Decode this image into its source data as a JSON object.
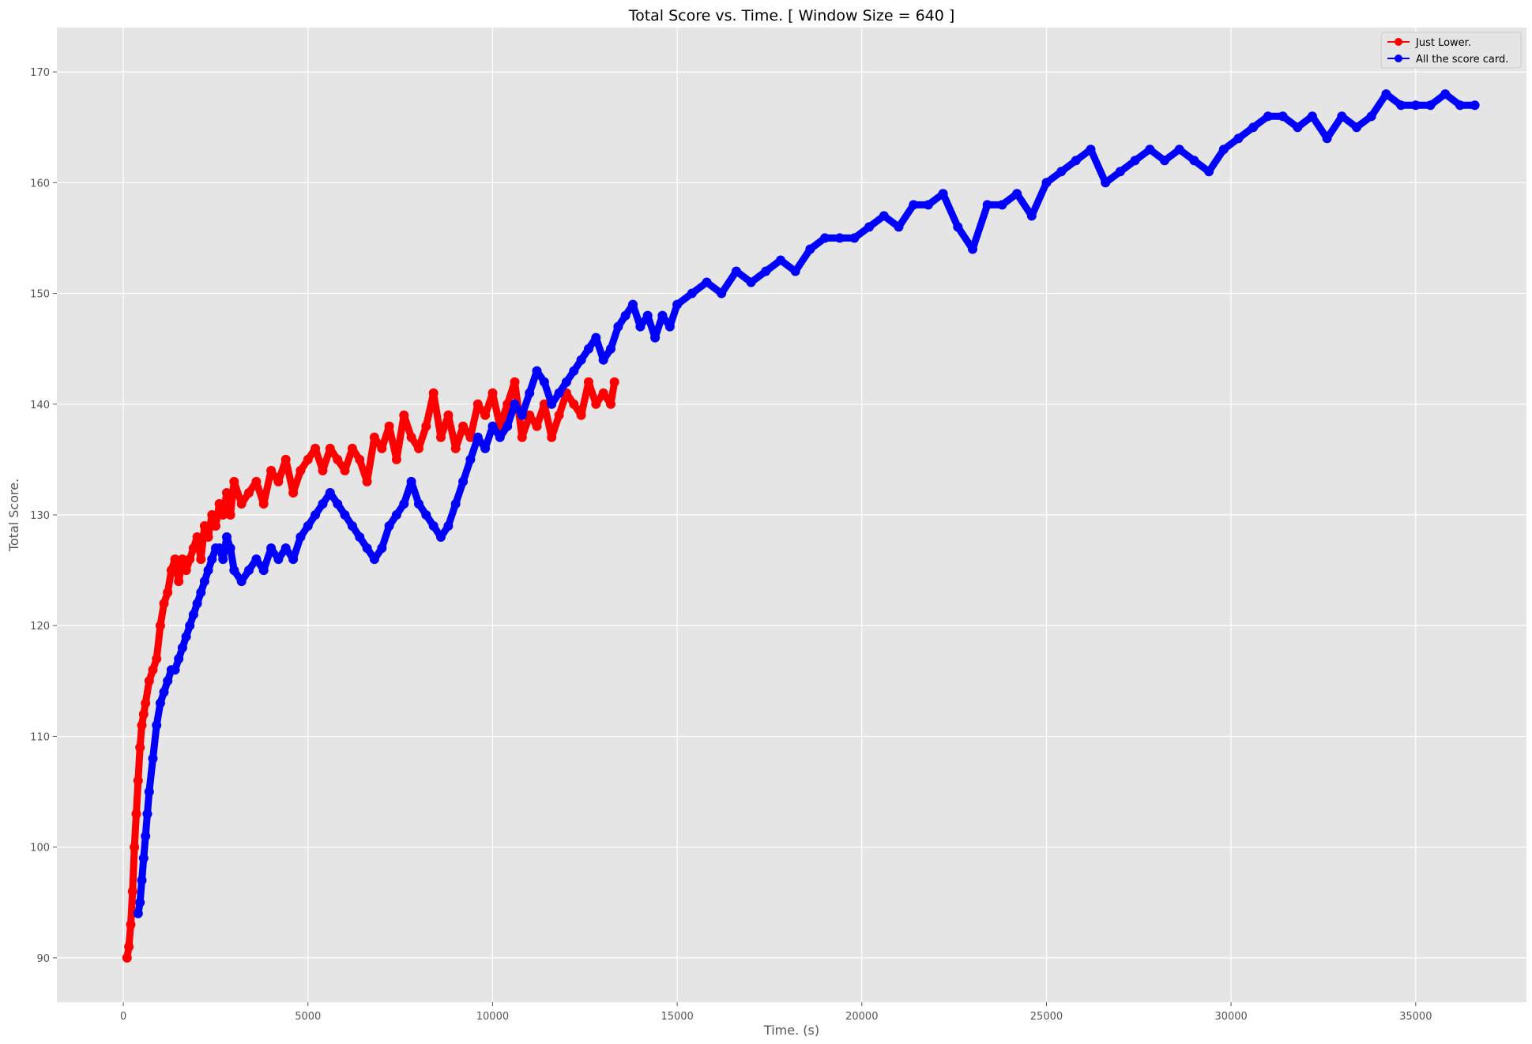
{
  "chart_data": {
    "type": "line",
    "title": "Total Score vs. Time. [ Window Size = 640 ]",
    "xlabel": "Time. (s)",
    "ylabel": "Total Score.",
    "xlim": [
      -1800,
      38000
    ],
    "ylim": [
      86,
      174
    ],
    "xticks": [
      0,
      5000,
      10000,
      15000,
      20000,
      25000,
      30000,
      35000
    ],
    "yticks": [
      90,
      100,
      110,
      120,
      130,
      140,
      150,
      160,
      170
    ],
    "grid": true,
    "legend_position": "top-right",
    "series": [
      {
        "name": "Just Lower.",
        "color": "#ff0000",
        "x": [
          100,
          150,
          200,
          250,
          300,
          350,
          400,
          450,
          500,
          550,
          600,
          700,
          800,
          900,
          1000,
          1100,
          1200,
          1300,
          1400,
          1500,
          1600,
          1700,
          1800,
          1900,
          2000,
          2100,
          2200,
          2300,
          2400,
          2500,
          2600,
          2700,
          2800,
          2900,
          3000,
          3200,
          3400,
          3600,
          3800,
          4000,
          4200,
          4400,
          4600,
          4800,
          5000,
          5200,
          5400,
          5600,
          5800,
          6000,
          6200,
          6400,
          6600,
          6800,
          7000,
          7200,
          7400,
          7600,
          7800,
          8000,
          8200,
          8400,
          8600,
          8800,
          9000,
          9200,
          9400,
          9600,
          9800,
          10000,
          10200,
          10400,
          10600,
          10800,
          11000,
          11200,
          11400,
          11600,
          11800,
          12000,
          12200,
          12400,
          12600,
          12800,
          13000,
          13200,
          13300
        ],
        "y": [
          90,
          91,
          93,
          96,
          100,
          103,
          106,
          109,
          111,
          112,
          113,
          115,
          116,
          117,
          120,
          122,
          123,
          125,
          126,
          124,
          126,
          125,
          126,
          127,
          128,
          126,
          129,
          128,
          130,
          129,
          131,
          130,
          132,
          130,
          133,
          131,
          132,
          133,
          131,
          134,
          133,
          135,
          132,
          134,
          135,
          136,
          134,
          136,
          135,
          134,
          136,
          135,
          133,
          137,
          136,
          138,
          135,
          139,
          137,
          136,
          138,
          141,
          137,
          139,
          136,
          138,
          137,
          140,
          139,
          141,
          138,
          140,
          142,
          137,
          139,
          138,
          140,
          137,
          139,
          141,
          140,
          139,
          142,
          140,
          141,
          140,
          142
        ]
      },
      {
        "name": "All the score card.",
        "color": "#0000ff",
        "x": [
          400,
          450,
          500,
          550,
          600,
          650,
          700,
          800,
          900,
          1000,
          1100,
          1200,
          1300,
          1400,
          1500,
          1600,
          1700,
          1800,
          1900,
          2000,
          2100,
          2200,
          2300,
          2400,
          2500,
          2600,
          2700,
          2800,
          2900,
          3000,
          3200,
          3400,
          3600,
          3800,
          4000,
          4200,
          4400,
          4600,
          4800,
          5000,
          5200,
          5400,
          5600,
          5800,
          6000,
          6200,
          6400,
          6600,
          6800,
          7000,
          7200,
          7400,
          7600,
          7800,
          8000,
          8200,
          8400,
          8600,
          8800,
          9000,
          9200,
          9400,
          9600,
          9800,
          10000,
          10200,
          10400,
          10600,
          10800,
          11000,
          11200,
          11400,
          11600,
          11800,
          12000,
          12200,
          12400,
          12600,
          12800,
          13000,
          13200,
          13400,
          13600,
          13800,
          14000,
          14200,
          14400,
          14600,
          14800,
          15000,
          15400,
          15800,
          16200,
          16600,
          17000,
          17400,
          17800,
          18200,
          18600,
          19000,
          19400,
          19800,
          20200,
          20600,
          21000,
          21400,
          21800,
          22200,
          22600,
          23000,
          23400,
          23800,
          24200,
          24600,
          25000,
          25400,
          25800,
          26200,
          26600,
          27000,
          27400,
          27800,
          28200,
          28600,
          29000,
          29400,
          29800,
          30200,
          30600,
          31000,
          31400,
          31800,
          32200,
          32600,
          33000,
          33400,
          33800,
          34200,
          34600,
          35000,
          35400,
          35800,
          36200,
          36600
        ],
        "y": [
          94,
          95,
          97,
          99,
          101,
          103,
          105,
          108,
          111,
          113,
          114,
          115,
          116,
          116,
          117,
          118,
          119,
          120,
          121,
          122,
          123,
          124,
          125,
          126,
          127,
          127,
          126,
          128,
          127,
          125,
          124,
          125,
          126,
          125,
          127,
          126,
          127,
          126,
          128,
          129,
          130,
          131,
          132,
          131,
          130,
          129,
          128,
          127,
          126,
          127,
          129,
          130,
          131,
          133,
          131,
          130,
          129,
          128,
          129,
          131,
          133,
          135,
          137,
          136,
          138,
          137,
          138,
          140,
          139,
          141,
          143,
          142,
          140,
          141,
          142,
          143,
          144,
          145,
          146,
          144,
          145,
          147,
          148,
          149,
          147,
          148,
          146,
          148,
          147,
          149,
          150,
          151,
          150,
          152,
          151,
          152,
          153,
          152,
          154,
          155,
          155,
          155,
          156,
          157,
          156,
          158,
          158,
          159,
          156,
          154,
          158,
          158,
          159,
          157,
          160,
          161,
          162,
          163,
          160,
          161,
          162,
          163,
          162,
          163,
          162,
          161,
          163,
          164,
          165,
          166,
          166,
          165,
          166,
          164,
          166,
          165,
          166,
          168,
          167,
          167,
          167,
          168,
          167,
          167
        ]
      }
    ]
  }
}
